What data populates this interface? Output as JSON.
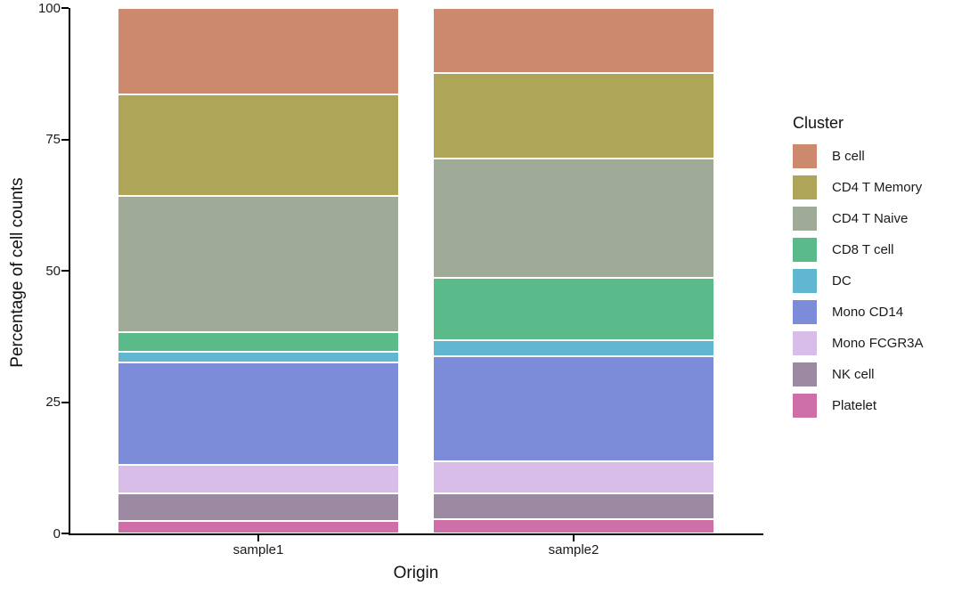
{
  "chart_data": {
    "type": "bar",
    "stacked": true,
    "orientation": "vertical",
    "title": "",
    "xlabel": "Origin",
    "ylabel": "Percentage of cell counts",
    "ylim": [
      0,
      100
    ],
    "yticks": [
      0,
      25,
      50,
      75,
      100
    ],
    "grid": "off",
    "categories": [
      "sample1",
      "sample2"
    ],
    "legend_title": "Cluster",
    "legend_position": "right",
    "series": [
      {
        "name": "B cell",
        "color": "#CC896E",
        "values": [
          16.4,
          12.3
        ]
      },
      {
        "name": "CD4 T Memory",
        "color": "#AFA558",
        "values": [
          19.4,
          16.4
        ]
      },
      {
        "name": "CD4 T Naive",
        "color": "#9FAB96",
        "values": [
          25.9,
          22.7
        ]
      },
      {
        "name": "CD8 T cell",
        "color": "#5ABA8A",
        "values": [
          3.8,
          11.8
        ]
      },
      {
        "name": "DC",
        "color": "#60B7CF",
        "values": [
          2.0,
          3.0
        ]
      },
      {
        "name": "Mono CD14",
        "color": "#7C8CD9",
        "values": [
          19.4,
          20.0
        ]
      },
      {
        "name": "Mono FCGR3A",
        "color": "#D7BDE8",
        "values": [
          5.5,
          6.1
        ]
      },
      {
        "name": "NK cell",
        "color": "#9B8AA1",
        "values": [
          5.2,
          5.0
        ]
      },
      {
        "name": "Platelet",
        "color": "#CE70A7",
        "values": [
          2.4,
          2.7
        ]
      }
    ]
  }
}
